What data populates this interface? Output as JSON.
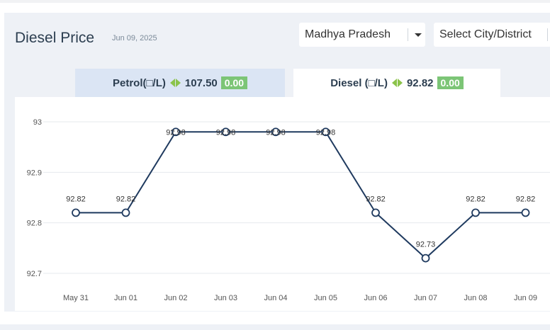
{
  "header": {
    "title": "Diesel Price",
    "date": "Jun 09, 2025"
  },
  "filters": {
    "state": "Madhya Pradesh",
    "city_placeholder": "Select City/District"
  },
  "tabs": [
    {
      "label": "Petrol(□/L)",
      "price": "107.50",
      "change": "0.00",
      "active": false
    },
    {
      "label": "Diesel (□/L)",
      "price": "92.82",
      "change": "0.00",
      "active": true
    }
  ],
  "colors": {
    "line": "#1f3a5f",
    "badge": "#7cc576",
    "arrow": "#8bc34a",
    "panel": "#eef1f6"
  },
  "chart_data": {
    "type": "line",
    "categories": [
      "May 31",
      "Jun 01",
      "Jun 02",
      "Jun 03",
      "Jun 04",
      "Jun 05",
      "Jun 06",
      "Jun 07",
      "Jun 08",
      "Jun 09"
    ],
    "values": [
      92.82,
      92.82,
      92.98,
      92.98,
      92.98,
      92.98,
      92.82,
      92.73,
      92.82,
      92.82
    ],
    "data_labels": [
      "92.82",
      "92.82",
      "92.98",
      "92.98",
      "92.98",
      "92.98",
      "92.82",
      "92.73",
      "92.82",
      "92.82"
    ],
    "yticks": [
      "92.7",
      "92.8",
      "92.9",
      "93"
    ],
    "ylim": [
      92.7,
      93
    ],
    "grid": true
  }
}
